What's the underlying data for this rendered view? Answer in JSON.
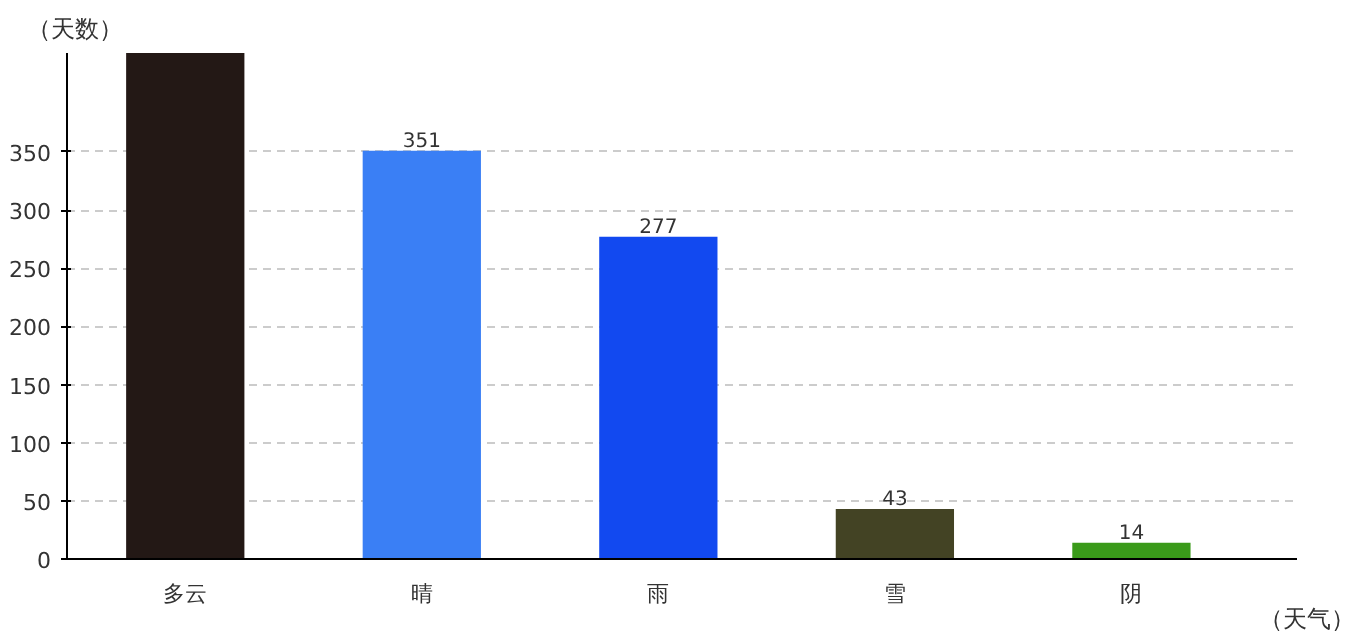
{
  "chart_data": {
    "type": "bar",
    "xlabel": "（天气）",
    "ylabel": "（天数）",
    "categories": [
      "多云",
      "晴",
      "雨",
      "雪",
      "阴"
    ],
    "values": [
      435,
      351,
      277,
      43,
      14
    ],
    "value_labels": [
      null,
      "351",
      "277",
      "43",
      "14"
    ],
    "colors": [
      "#231815",
      "#3a7ff5",
      "#1249f0",
      "#434324",
      "#3a9a1a"
    ],
    "ylim": [
      0,
      435
    ],
    "yticks": [
      0,
      50,
      100,
      150,
      200,
      250,
      300,
      350
    ],
    "grid": "y"
  }
}
